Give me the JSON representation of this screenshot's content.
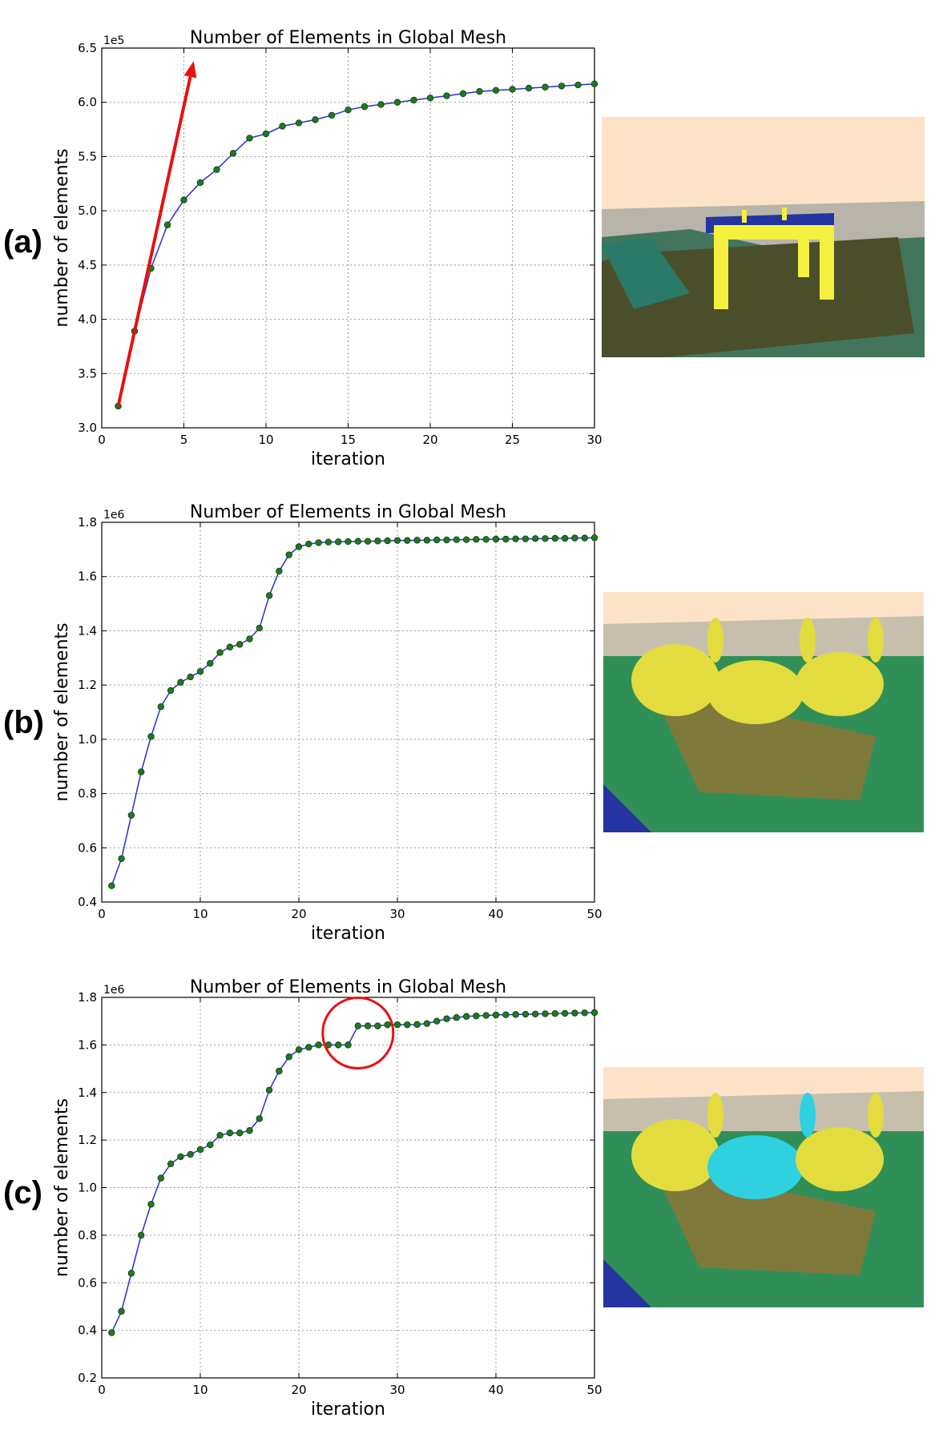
{
  "panels": [
    {
      "label": "(a)",
      "render_colors": {
        "background": "#fce3c8",
        "floor": "#4a4e2a",
        "object": "#f4f040",
        "clutter": "#2d6a4f"
      }
    },
    {
      "label": "(b)",
      "render_colors": {
        "background": "#fce3c8",
        "floor": "#7f7a3c",
        "object": "#e2dc3e",
        "clutter": "#1f8a4c"
      }
    },
    {
      "label": "(c)",
      "render_colors": {
        "background": "#fce3c8",
        "floor": "#7f7a3c",
        "object": "#e2dc3e",
        "highlight": "#2fd0e0",
        "clutter": "#1f8a4c"
      }
    }
  ],
  "chart_data": [
    {
      "type": "line",
      "title": "Number of Elements in Global Mesh",
      "xlabel": "iteration",
      "ylabel": "number of elements",
      "multiplier": "1e5",
      "xlim": [
        0,
        30
      ],
      "ylim": [
        3.0,
        6.5
      ],
      "xticks": [
        "0",
        "5",
        "10",
        "15",
        "20",
        "25",
        "30"
      ],
      "xtick_values": [
        0,
        5,
        10,
        15,
        20,
        25,
        30
      ],
      "yticks": [
        "3.0",
        "3.5",
        "4.0",
        "4.5",
        "5.0",
        "5.5",
        "6.0",
        "6.5"
      ],
      "ytick_values": [
        3.0,
        3.5,
        4.0,
        4.5,
        5.0,
        5.5,
        6.0,
        6.5
      ],
      "grid": true,
      "line_color": "#2b2bd8",
      "marker_color": "#1f7a1f",
      "x": [
        1,
        2,
        3,
        4,
        5,
        6,
        7,
        8,
        9,
        10,
        11,
        12,
        13,
        14,
        15,
        16,
        17,
        18,
        19,
        20,
        21,
        22,
        23,
        24,
        25,
        26,
        27,
        28,
        29,
        30
      ],
      "y": [
        3.2,
        3.89,
        4.47,
        4.87,
        5.1,
        5.26,
        5.38,
        5.53,
        5.67,
        5.71,
        5.78,
        5.81,
        5.84,
        5.88,
        5.93,
        5.96,
        5.98,
        6.0,
        6.02,
        6.04,
        6.06,
        6.08,
        6.1,
        6.11,
        6.12,
        6.13,
        6.14,
        6.15,
        6.16,
        6.17
      ],
      "annotation": {
        "type": "arrow",
        "color": "#e81010",
        "from": [
          1,
          3.2
        ],
        "to": [
          5.6,
          6.38
        ]
      }
    },
    {
      "type": "line",
      "title": "Number of Elements in Global Mesh",
      "xlabel": "iteration",
      "ylabel": "number of elements",
      "multiplier": "1e6",
      "xlim": [
        0,
        50
      ],
      "ylim": [
        0.4,
        1.8
      ],
      "xticks": [
        "0",
        "10",
        "20",
        "30",
        "40",
        "50"
      ],
      "xtick_values": [
        0,
        10,
        20,
        30,
        40,
        50
      ],
      "yticks": [
        "0.4",
        "0.6",
        "0.8",
        "1.0",
        "1.2",
        "1.4",
        "1.6",
        "1.8"
      ],
      "ytick_values": [
        0.4,
        0.6,
        0.8,
        1.0,
        1.2,
        1.4,
        1.6,
        1.8
      ],
      "grid": true,
      "line_color": "#2b2bd8",
      "marker_color": "#1f7a1f",
      "x": [
        1,
        2,
        3,
        4,
        5,
        6,
        7,
        8,
        9,
        10,
        11,
        12,
        13,
        14,
        15,
        16,
        17,
        18,
        19,
        20,
        21,
        22,
        23,
        24,
        25,
        26,
        27,
        28,
        29,
        30,
        31,
        32,
        33,
        34,
        35,
        36,
        37,
        38,
        39,
        40,
        41,
        42,
        43,
        44,
        45,
        46,
        47,
        48,
        49,
        50
      ],
      "y": [
        0.46,
        0.56,
        0.72,
        0.88,
        1.01,
        1.12,
        1.18,
        1.21,
        1.23,
        1.25,
        1.28,
        1.32,
        1.34,
        1.35,
        1.37,
        1.41,
        1.53,
        1.62,
        1.68,
        1.71,
        1.72,
        1.725,
        1.727,
        1.728,
        1.729,
        1.73,
        1.73,
        1.731,
        1.732,
        1.733,
        1.733,
        1.734,
        1.734,
        1.735,
        1.735,
        1.736,
        1.736,
        1.737,
        1.737,
        1.738,
        1.738,
        1.739,
        1.739,
        1.74,
        1.74,
        1.741,
        1.741,
        1.742,
        1.742,
        1.743
      ]
    },
    {
      "type": "line",
      "title": "Number of Elements in Global Mesh",
      "xlabel": "iteration",
      "ylabel": "number of elements",
      "multiplier": "1e6",
      "xlim": [
        0,
        50
      ],
      "ylim": [
        0.2,
        1.8
      ],
      "xticks": [
        "0",
        "10",
        "20",
        "30",
        "40",
        "50"
      ],
      "xtick_values": [
        0,
        10,
        20,
        30,
        40,
        50
      ],
      "yticks": [
        "0.2",
        "0.4",
        "0.6",
        "0.8",
        "1.0",
        "1.2",
        "1.4",
        "1.6",
        "1.8"
      ],
      "ytick_values": [
        0.2,
        0.4,
        0.6,
        0.8,
        1.0,
        1.2,
        1.4,
        1.6,
        1.8
      ],
      "grid": true,
      "line_color": "#2b2bd8",
      "marker_color": "#1f7a1f",
      "x": [
        1,
        2,
        3,
        4,
        5,
        6,
        7,
        8,
        9,
        10,
        11,
        12,
        13,
        14,
        15,
        16,
        17,
        18,
        19,
        20,
        21,
        22,
        23,
        24,
        25,
        26,
        27,
        28,
        29,
        30,
        31,
        32,
        33,
        34,
        35,
        36,
        37,
        38,
        39,
        40,
        41,
        42,
        43,
        44,
        45,
        46,
        47,
        48,
        49,
        50
      ],
      "y": [
        0.39,
        0.48,
        0.64,
        0.8,
        0.93,
        1.04,
        1.1,
        1.13,
        1.14,
        1.16,
        1.18,
        1.22,
        1.23,
        1.23,
        1.24,
        1.29,
        1.41,
        1.49,
        1.55,
        1.58,
        1.59,
        1.6,
        1.6,
        1.6,
        1.6,
        1.68,
        1.68,
        1.68,
        1.685,
        1.685,
        1.685,
        1.686,
        1.69,
        1.7,
        1.71,
        1.715,
        1.72,
        1.722,
        1.724,
        1.726,
        1.727,
        1.728,
        1.729,
        1.73,
        1.731,
        1.732,
        1.733,
        1.734,
        1.735,
        1.736
      ],
      "annotation": {
        "type": "circle",
        "color": "#e81010",
        "center": [
          26,
          1.65
        ]
      }
    }
  ]
}
